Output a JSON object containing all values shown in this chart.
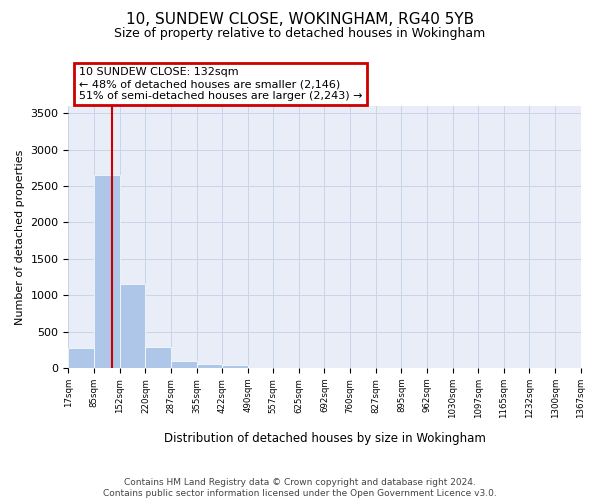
{
  "title": "10, SUNDEW CLOSE, WOKINGHAM, RG40 5YB",
  "subtitle": "Size of property relative to detached houses in Wokingham",
  "xlabel": "Distribution of detached houses by size in Wokingham",
  "ylabel": "Number of detached properties",
  "footer_line1": "Contains HM Land Registry data © Crown copyright and database right 2024.",
  "footer_line2": "Contains public sector information licensed under the Open Government Licence v3.0.",
  "annotation_line1": "10 SUNDEW CLOSE: 132sqm",
  "annotation_line2": "← 48% of detached houses are smaller (2,146)",
  "annotation_line3": "51% of semi-detached houses are larger (2,243) →",
  "property_size": 132,
  "bin_edges": [
    17,
    85,
    152,
    220,
    287,
    355,
    422,
    490,
    557,
    625,
    692,
    760,
    827,
    895,
    962,
    1030,
    1097,
    1165,
    1232,
    1300,
    1367
  ],
  "bar_heights": [
    270,
    2650,
    1150,
    285,
    100,
    60,
    40,
    5,
    2,
    2,
    1,
    1,
    0,
    0,
    0,
    0,
    0,
    0,
    0,
    0
  ],
  "bar_color": "#aec6e8",
  "bar_edge_color": "white",
  "vline_color": "#cc0000",
  "annotation_box_edgecolor": "#cc0000",
  "grid_color": "#c8d4e8",
  "bg_color": "#e8edf8",
  "ylim": [
    0,
    3600
  ],
  "yticks": [
    0,
    500,
    1000,
    1500,
    2000,
    2500,
    3000,
    3500
  ]
}
